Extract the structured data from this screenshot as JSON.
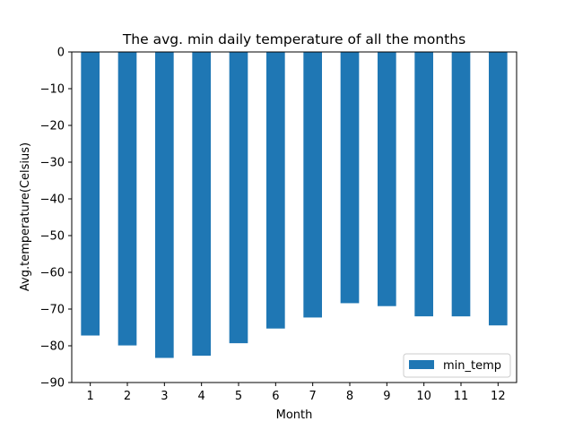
{
  "chart_data": {
    "type": "bar",
    "title": "The avg. min daily temperature of all the months",
    "xlabel": "Month",
    "ylabel": "Avg.temperature(Celsius)",
    "categories": [
      "1",
      "2",
      "3",
      "4",
      "5",
      "6",
      "7",
      "8",
      "9",
      "10",
      "11",
      "12"
    ],
    "series": [
      {
        "name": "min_temp",
        "color": "#1f77b4",
        "values": [
          -77.2,
          -79.9,
          -83.3,
          -82.7,
          -79.3,
          -75.3,
          -72.3,
          -68.4,
          -69.2,
          -71.98,
          -71.99,
          -74.45
        ]
      }
    ],
    "ylim": [
      -90,
      0
    ],
    "yticks": [
      0,
      -10,
      -20,
      -30,
      -40,
      -50,
      -60,
      -70,
      -80,
      -90
    ],
    "grid": false,
    "legend_position": "lower-right"
  }
}
